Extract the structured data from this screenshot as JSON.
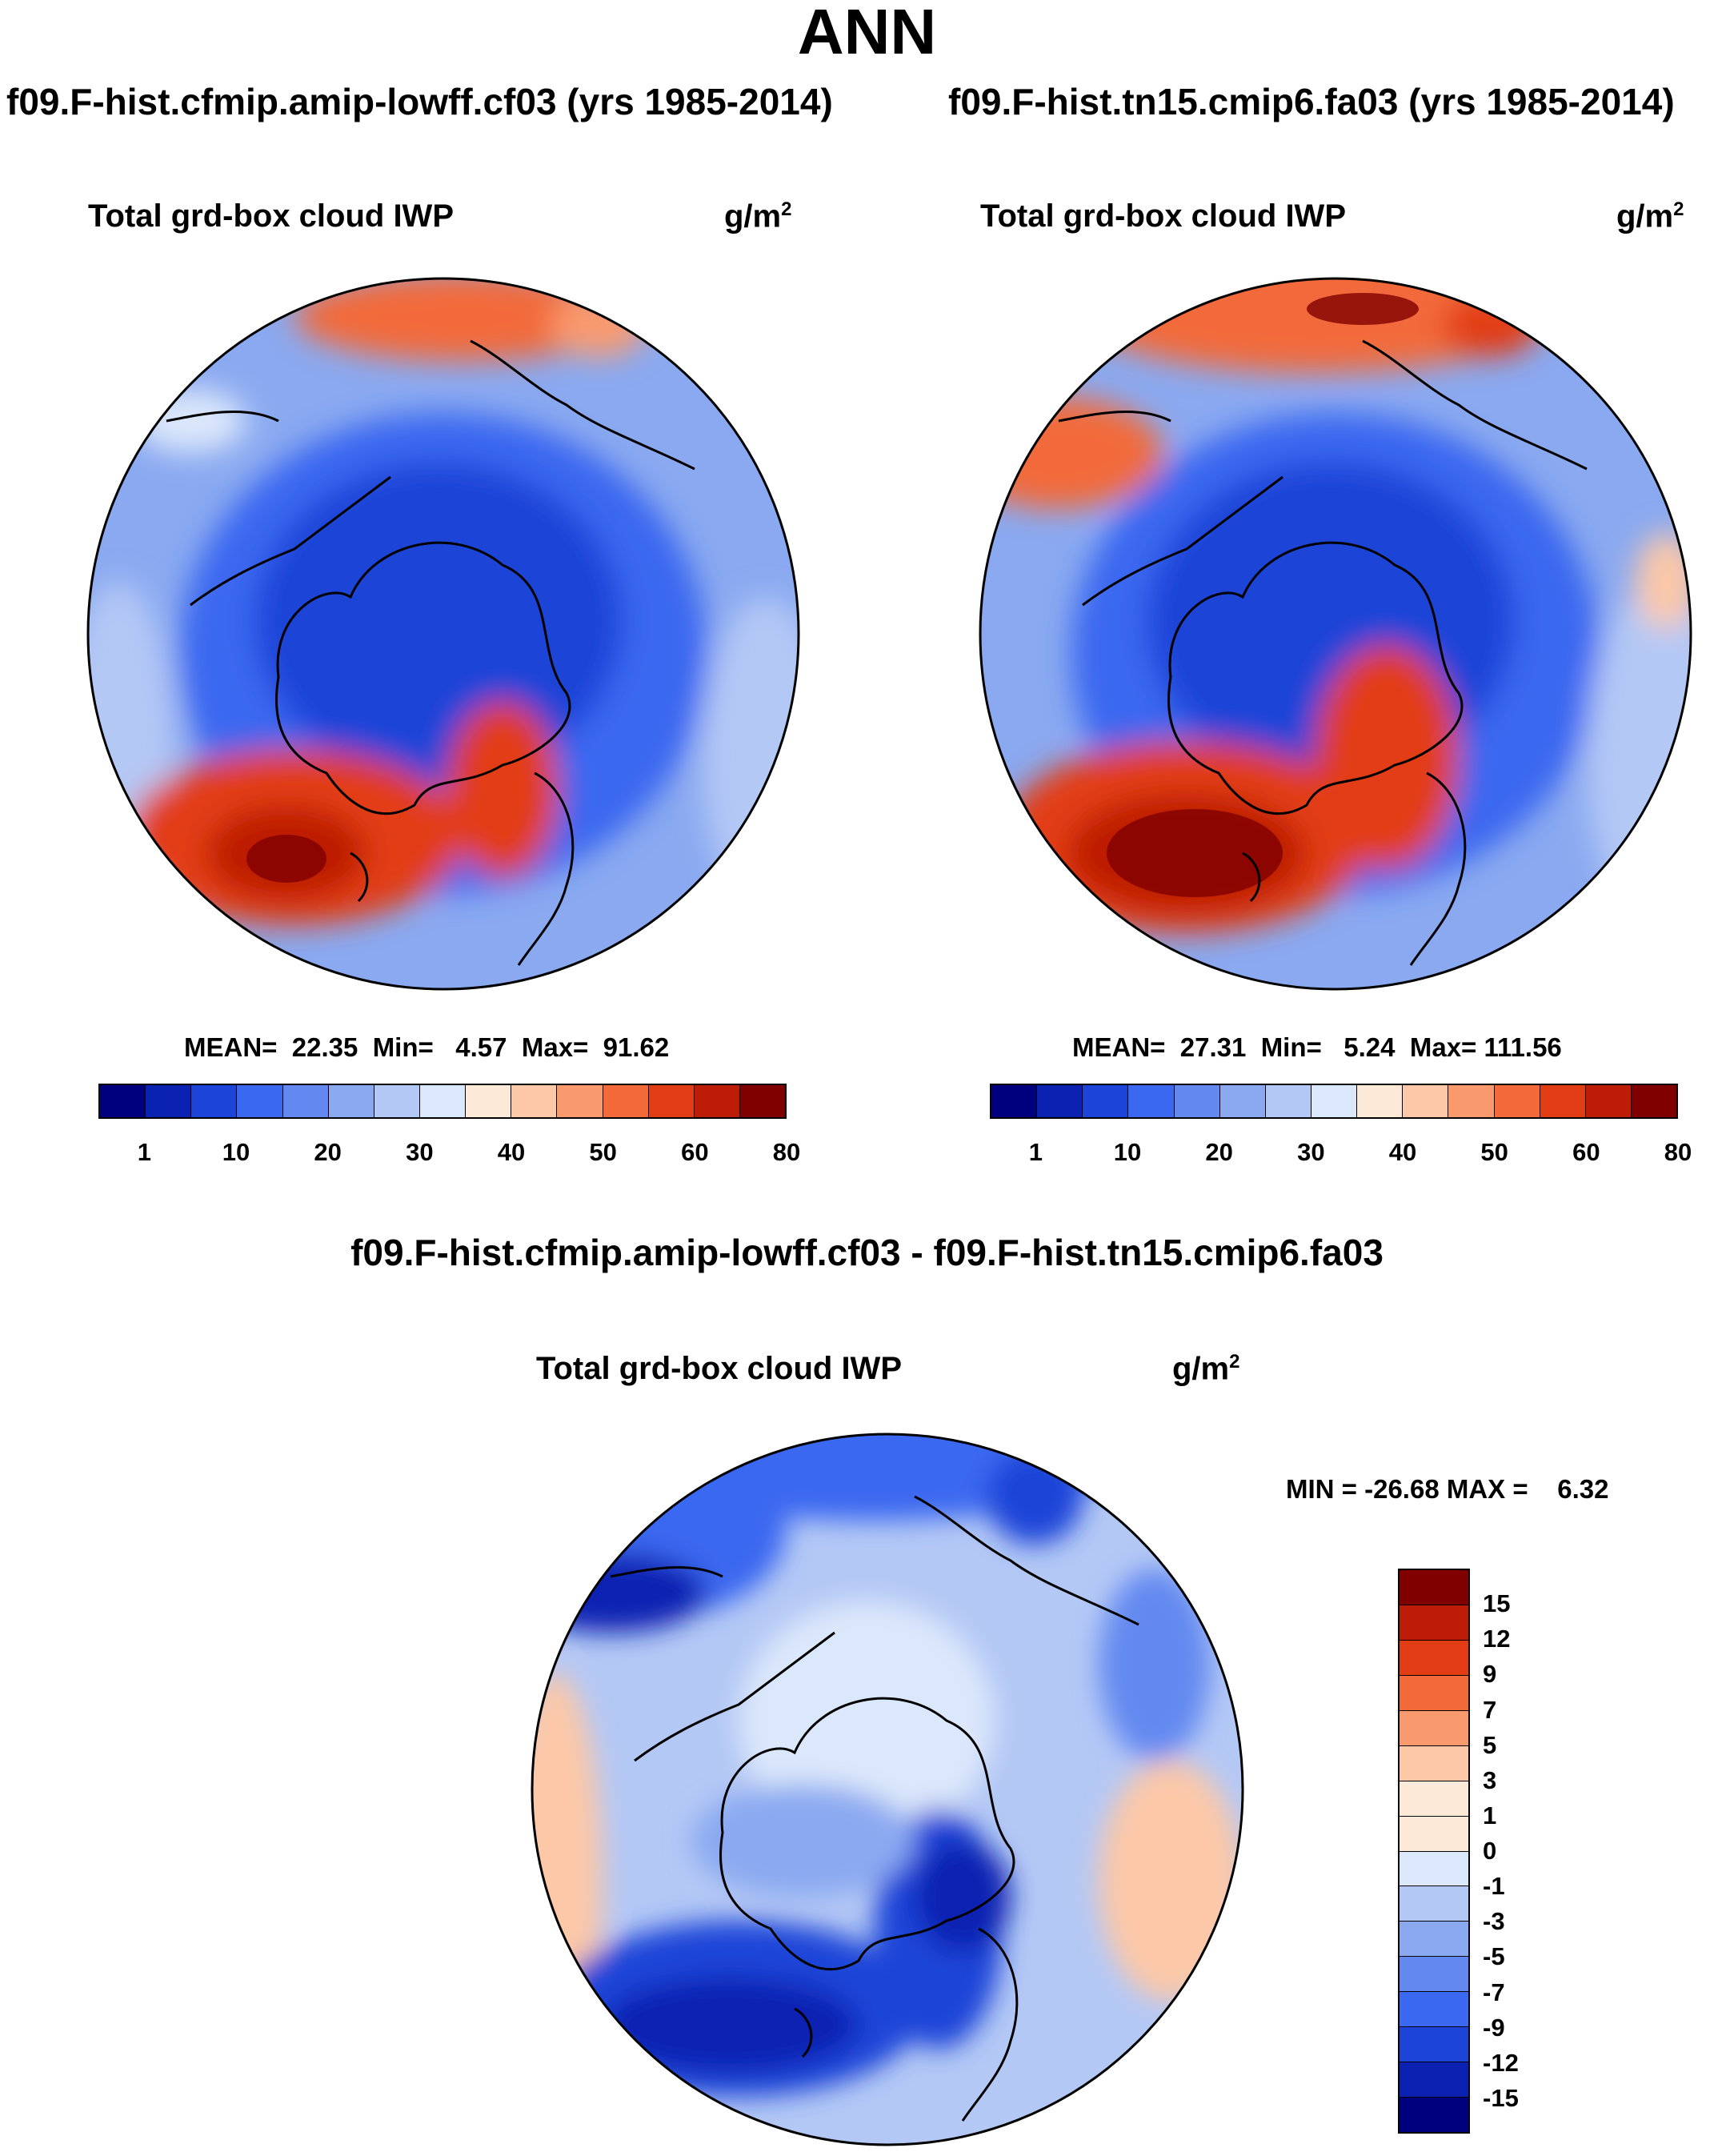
{
  "figure": {
    "title": "ANN"
  },
  "panels": [
    {
      "case_title": "f09.F-hist.cfmip.amip-lowff.cf03 (yrs 1985-2014)",
      "variable": "Total grd-box cloud IWP",
      "unit_base": "g/m",
      "unit_exp": "2",
      "stats": "MEAN=  22.35  Min=   4.57  Max=  91.62",
      "mean": 22.35,
      "min": 4.57,
      "max": 91.62
    },
    {
      "case_title": "f09.F-hist.tn15.cmip6.fa03 (yrs 1985-2014)",
      "variable": "Total grd-box cloud IWP",
      "unit_base": "g/m",
      "unit_exp": "2",
      "stats": "MEAN=  27.31  Min=   5.24  Max= 111.56",
      "mean": 27.31,
      "min": 5.24,
      "max": 111.56
    },
    {
      "case_title": "f09.F-hist.cfmip.amip-lowff.cf03 - f09.F-hist.tn15.cmip6.fa03",
      "variable": "Total grd-box cloud IWP",
      "unit_base": "g/m",
      "unit_exp": "2",
      "stats": "MIN = -26.68 MAX =    6.32",
      "min": -26.68,
      "max": 6.32
    }
  ],
  "colorbar_main": {
    "colors": [
      "#00007f",
      "#0a21b2",
      "#1d44d8",
      "#3b68f0",
      "#6389f0",
      "#8aa9f0",
      "#b4c8f5",
      "#dbe7fa",
      "#fde9d8",
      "#fcc8a8",
      "#f99a6e",
      "#f26a3a",
      "#e23c14",
      "#bd1c06",
      "#800000"
    ],
    "labels": [
      "1",
      "10",
      "20",
      "30",
      "40",
      "50",
      "60",
      "80"
    ]
  },
  "colorbar_diff": {
    "colors": [
      "#800000",
      "#bd1c06",
      "#e23c14",
      "#f26a3a",
      "#f99a6e",
      "#fcc8a8",
      "#fde9d8",
      "#dbe7fa",
      "#b4c8f5",
      "#8aa9f0",
      "#6389f0",
      "#3b68f0",
      "#1d44d8",
      "#0a21b2",
      "#00007f"
    ],
    "labels": [
      "15",
      "12",
      "9",
      "7",
      "5",
      "3",
      "1",
      "0",
      "-1",
      "-3",
      "-5",
      "-7",
      "-9",
      "-12",
      "-15"
    ]
  },
  "chart_data": [
    {
      "type": "heatmap",
      "title": "Total grd-box cloud IWP",
      "projection": "north polar stereographic",
      "case": "f09.F-hist.cfmip.amip-lowff.cf03 (yrs 1985-2014)",
      "units": "g/m2",
      "levels": [
        1,
        5,
        10,
        15,
        20,
        25,
        30,
        35,
        40,
        45,
        50,
        55,
        60,
        70,
        80
      ],
      "mean": 22.35,
      "min": 4.57,
      "max": 91.62
    },
    {
      "type": "heatmap",
      "title": "Total grd-box cloud IWP",
      "projection": "north polar stereographic",
      "case": "f09.F-hist.tn15.cmip6.fa03 (yrs 1985-2014)",
      "units": "g/m2",
      "levels": [
        1,
        5,
        10,
        15,
        20,
        25,
        30,
        35,
        40,
        45,
        50,
        55,
        60,
        70,
        80
      ],
      "mean": 27.31,
      "min": 5.24,
      "max": 111.56
    },
    {
      "type": "heatmap",
      "title": "Total grd-box cloud IWP",
      "projection": "north polar stereographic",
      "case": "f09.F-hist.cfmip.amip-lowff.cf03 - f09.F-hist.tn15.cmip6.fa03",
      "units": "g/m2",
      "levels": [
        -15,
        -12,
        -9,
        -7,
        -5,
        -3,
        -1,
        0,
        1,
        3,
        5,
        7,
        9,
        12,
        15
      ],
      "min": -26.68,
      "max": 6.32
    }
  ]
}
